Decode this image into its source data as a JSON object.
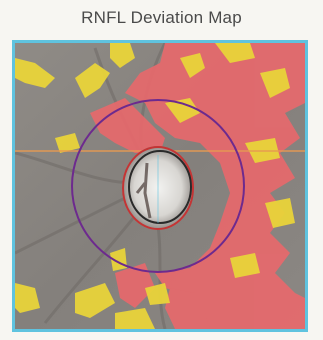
{
  "title": "RNFL Deviation Map",
  "colors": {
    "background_fundus": "#8c8a86",
    "deviation_red": "#e7696c",
    "deviation_yellow": "#e9d43a",
    "circle_outline": "#6d2a8e",
    "frame_border": "#5fc3df",
    "disc_rim": "#c43434",
    "cup_outline": "#2a2a2a"
  }
}
